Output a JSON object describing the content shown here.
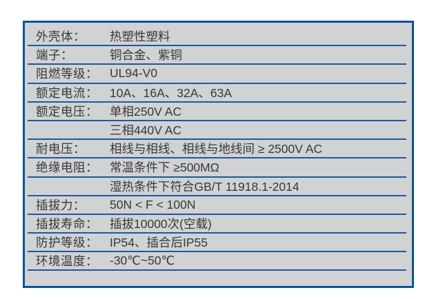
{
  "page": {
    "background": "#ffffff"
  },
  "table": {
    "colors": {
      "background": "#d1d2d4",
      "border": "#0a529c",
      "separator_line": "#1d58a2",
      "text": "#383838"
    },
    "rows": [
      {
        "label": "外壳体：",
        "value": "热塑性塑料"
      },
      {
        "label": "端子：",
        "value": "铜合金、紫铜"
      },
      {
        "label": "阻燃等级：",
        "value": "UL94-V0"
      },
      {
        "label": "额定电流：",
        "value": "10A、16A、32A、63A"
      },
      {
        "label": "额定电压：",
        "value": "单相250V AC"
      },
      {
        "label": "",
        "value": "三相440V AC"
      },
      {
        "label": "耐电压：",
        "value": "相线与相线、相线与地线间 ≥ 2500V AC"
      },
      {
        "label": "绝缘电阻：",
        "value": "常温条件下 ≥500MΩ"
      },
      {
        "label": "",
        "value": "湿热条件下符合GB/T 11918.1-2014"
      },
      {
        "label": "插拔力：",
        "value": "50N < F < 100N"
      },
      {
        "label": "插拔寿命：",
        "value": "插拔10000次(空载)"
      },
      {
        "label": "防护等级：",
        "value": "IP54、插合后IP55"
      },
      {
        "label": "环境温度：",
        "value": "-30℃~50℃"
      }
    ]
  }
}
